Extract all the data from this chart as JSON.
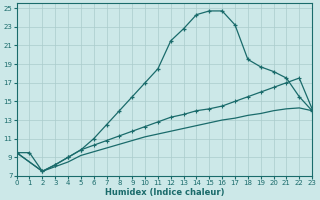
{
  "xlabel": "Humidex (Indice chaleur)",
  "bg_color": "#cce8e8",
  "grid_color": "#aacccc",
  "line_color": "#1a6b6b",
  "xlim": [
    0,
    23
  ],
  "ylim": [
    7,
    25.5
  ],
  "xticks": [
    0,
    1,
    2,
    3,
    4,
    5,
    6,
    7,
    8,
    9,
    10,
    11,
    12,
    13,
    14,
    15,
    16,
    17,
    18,
    19,
    20,
    21,
    22,
    23
  ],
  "yticks": [
    7,
    9,
    11,
    13,
    15,
    17,
    19,
    21,
    23,
    25
  ],
  "curve1_x": [
    0,
    1,
    2,
    3,
    4,
    5,
    6,
    7,
    8,
    9,
    10,
    11,
    12,
    13,
    14,
    15,
    16,
    17,
    18,
    19,
    20,
    21,
    22,
    23
  ],
  "curve1_y": [
    9.5,
    9.5,
    7.5,
    8.2,
    9.0,
    9.8,
    11.0,
    12.5,
    14.0,
    15.5,
    17.0,
    18.5,
    21.5,
    22.8,
    24.3,
    24.7,
    24.7,
    23.2,
    19.5,
    18.7,
    18.2,
    17.5,
    15.5,
    14.0
  ],
  "curve2_x": [
    0,
    2,
    3,
    4,
    5,
    6,
    7,
    8,
    9,
    10,
    11,
    12,
    13,
    14,
    15,
    16,
    17,
    18,
    19,
    20,
    21,
    22,
    23
  ],
  "curve2_y": [
    9.5,
    7.5,
    8.2,
    9.0,
    9.8,
    10.3,
    10.8,
    11.3,
    11.8,
    12.3,
    12.8,
    13.3,
    13.6,
    14.0,
    14.2,
    14.5,
    15.0,
    15.5,
    16.0,
    16.5,
    17.0,
    17.5,
    14.2
  ],
  "curve3_x": [
    0,
    2,
    3,
    4,
    5,
    6,
    7,
    8,
    9,
    10,
    11,
    12,
    13,
    14,
    15,
    16,
    17,
    18,
    19,
    20,
    21,
    22,
    23
  ],
  "curve3_y": [
    9.5,
    7.5,
    8.0,
    8.5,
    9.2,
    9.6,
    10.0,
    10.4,
    10.8,
    11.2,
    11.5,
    11.8,
    12.1,
    12.4,
    12.7,
    13.0,
    13.2,
    13.5,
    13.7,
    14.0,
    14.2,
    14.3,
    14.0
  ]
}
